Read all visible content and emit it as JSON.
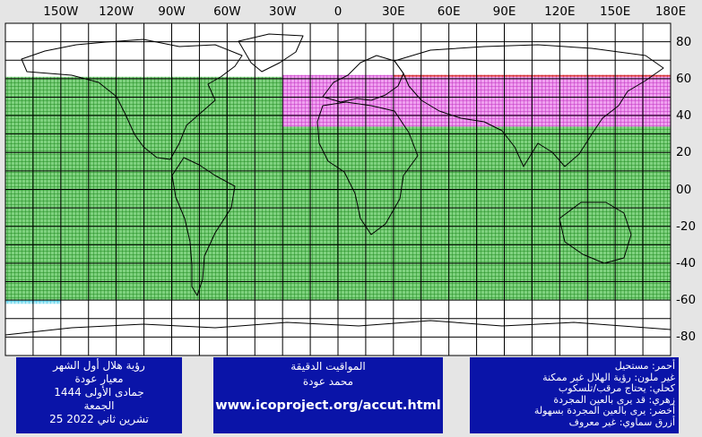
{
  "map": {
    "lon_labels": [
      "150W",
      "120W",
      "90W",
      "60W",
      "30W",
      "0",
      "30E",
      "60E",
      "90E",
      "120E",
      "150E",
      "180E"
    ],
    "lat_labels": [
      "80",
      "60",
      "40",
      "20",
      "00",
      "-20",
      "-40",
      "-60",
      "-80"
    ],
    "lon_range": [
      -180,
      180
    ],
    "lat_range": [
      -90,
      90
    ],
    "zones": [
      {
        "name": "green",
        "color": "#2aa02a",
        "lat_from": -60,
        "lat_to": 61
      },
      {
        "name": "pink",
        "color": "#e050e0",
        "lat_from": 34,
        "lat_to": 62,
        "lon_from": -30,
        "lon_to": 180
      },
      {
        "name": "red",
        "color": "#e02020",
        "lat_from": 61,
        "lat_to": 62,
        "lon_from": 30,
        "lon_to": 180
      },
      {
        "name": "sky-blue",
        "color": "#30c0e0",
        "lat_from": -62,
        "lat_to": -60,
        "lon_from": -180,
        "lon_to": -150
      }
    ]
  },
  "left_panel": {
    "lines": [
      "رؤية هلال أول الشهر",
      "معيار عودة",
      "جمادى الأولى 1444",
      "الجمعة",
      "تشرين ثاني 2022 25"
    ]
  },
  "mid_panel": {
    "title": "المواقيت الدقيقة",
    "author": "محمد عودة",
    "url": "www.icoproject.org/accut.html"
  },
  "right_panel": {
    "lines": [
      "أحمر: مستحيل",
      "غير ملون: رؤية الهلال غير ممكنة",
      "كحلي: يحتاج مرقب/تلسكوب",
      "زهري: قد يرى بالعين المجردة",
      "أخضر: يرى بالعين المجردة بسهولة",
      "أزرق سماوي: غير معروف"
    ]
  },
  "colors": {
    "panel_bg": "#0a14a8",
    "panel_text": "#ffffff",
    "background": "#e5e5e5",
    "grid": "#000000",
    "coast": "#000000"
  }
}
